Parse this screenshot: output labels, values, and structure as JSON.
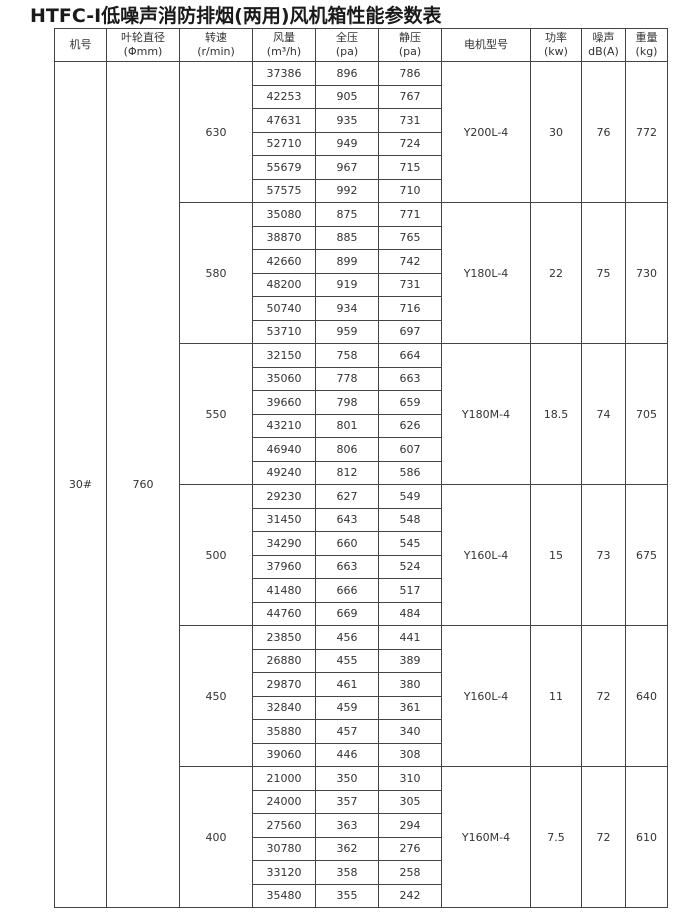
{
  "title": "HTFC-Ⅰ低噪声消防排烟(两用)风机箱性能参数表",
  "headers": [
    {
      "l1": "机号",
      "l2": ""
    },
    {
      "l1": "叶轮直径",
      "l2": "(Φmm)"
    },
    {
      "l1": "转速",
      "l2": "(r/min)"
    },
    {
      "l1": "风量",
      "l2": "(m³/h)"
    },
    {
      "l1": "全压",
      "l2": "(pa)"
    },
    {
      "l1": "静压",
      "l2": "(pa)"
    },
    {
      "l1": "电机型号",
      "l2": ""
    },
    {
      "l1": "功率",
      "l2": "(kw)"
    },
    {
      "l1": "噪声",
      "l2": "dB(A)"
    },
    {
      "l1": "重量",
      "l2": "(kg)"
    }
  ],
  "model": "30#",
  "diameter": "760",
  "groups": [
    {
      "speed": "630",
      "motor": "Y200L-4",
      "power": "30",
      "noise": "76",
      "weight": "772",
      "rows": [
        [
          "37386",
          "896",
          "786"
        ],
        [
          "42253",
          "905",
          "767"
        ],
        [
          "47631",
          "935",
          "731"
        ],
        [
          "52710",
          "949",
          "724"
        ],
        [
          "55679",
          "967",
          "715"
        ],
        [
          "57575",
          "992",
          "710"
        ]
      ]
    },
    {
      "speed": "580",
      "motor": "Y180L-4",
      "power": "22",
      "noise": "75",
      "weight": "730",
      "rows": [
        [
          "35080",
          "875",
          "771"
        ],
        [
          "38870",
          "885",
          "765"
        ],
        [
          "42660",
          "899",
          "742"
        ],
        [
          "48200",
          "919",
          "731"
        ],
        [
          "50740",
          "934",
          "716"
        ],
        [
          "53710",
          "959",
          "697"
        ]
      ]
    },
    {
      "speed": "550",
      "motor": "Y180M-4",
      "power": "18.5",
      "noise": "74",
      "weight": "705",
      "rows": [
        [
          "32150",
          "758",
          "664"
        ],
        [
          "35060",
          "778",
          "663"
        ],
        [
          "39660",
          "798",
          "659"
        ],
        [
          "43210",
          "801",
          "626"
        ],
        [
          "46940",
          "806",
          "607"
        ],
        [
          "49240",
          "812",
          "586"
        ]
      ]
    },
    {
      "speed": "500",
      "motor": "Y160L-4",
      "power": "15",
      "noise": "73",
      "weight": "675",
      "rows": [
        [
          "29230",
          "627",
          "549"
        ],
        [
          "31450",
          "643",
          "548"
        ],
        [
          "34290",
          "660",
          "545"
        ],
        [
          "37960",
          "663",
          "524"
        ],
        [
          "41480",
          "666",
          "517"
        ],
        [
          "44760",
          "669",
          "484"
        ]
      ]
    },
    {
      "speed": "450",
      "motor": "Y160L-4",
      "power": "11",
      "noise": "72",
      "weight": "640",
      "rows": [
        [
          "23850",
          "456",
          "441"
        ],
        [
          "26880",
          "455",
          "389"
        ],
        [
          "29870",
          "461",
          "380"
        ],
        [
          "32840",
          "459",
          "361"
        ],
        [
          "35880",
          "457",
          "340"
        ],
        [
          "39060",
          "446",
          "308"
        ]
      ]
    },
    {
      "speed": "400",
      "motor": "Y160M-4",
      "power": "7.5",
      "noise": "72",
      "weight": "610",
      "rows": [
        [
          "21000",
          "350",
          "310"
        ],
        [
          "24000",
          "357",
          "305"
        ],
        [
          "27560",
          "363",
          "294"
        ],
        [
          "30780",
          "362",
          "276"
        ],
        [
          "33120",
          "358",
          "258"
        ],
        [
          "35480",
          "355",
          "242"
        ]
      ]
    }
  ]
}
